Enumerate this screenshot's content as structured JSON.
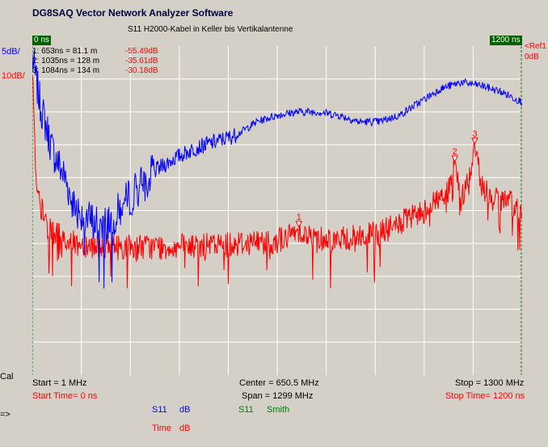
{
  "app_title": "DG8SAQ Vector Network Analyzer Software",
  "chart_title": "S11 H2000-Kabel in Keller bis Vertikalantenne",
  "left_scale": {
    "top": "5dB/",
    "bottom": "10dB/"
  },
  "right_ref": {
    "top": "<Ref1",
    "bottom": "0dB"
  },
  "corner_left": "0 ns",
  "corner_right": "1200 ns",
  "markers": [
    {
      "label": "1:   653ns = 81.1 m",
      "value": "-55.49dB"
    },
    {
      "label": "2:  1035ns = 128 m",
      "value": "-35.61dB"
    },
    {
      "label": "3:  1084ns = 134 m",
      "value": "-30.18dB"
    }
  ],
  "cal_label": "Cal",
  "arrow_label": "=>",
  "footer": {
    "start": "Start = 1 MHz",
    "center": "Center = 650.5 MHz",
    "stop": "Stop = 1300 MHz",
    "start_time": "Start Time= 0 ns",
    "span": "Span = 1299 MHz",
    "stop_time": "Stop Time= 1200 ns",
    "traces": [
      {
        "name": "S11",
        "format": "dB"
      },
      {
        "name": "S11",
        "format": "Smith"
      },
      {
        "name": "Time",
        "format": "dB"
      }
    ]
  },
  "colors": {
    "blue_trace": "#0000ff",
    "red_trace": "#ff0000",
    "grid": "#ffffff",
    "plot_bg": "#d4d0c8",
    "cursor": "#008000"
  },
  "chart_data": {
    "type": "line",
    "title": "S11 H2000-Kabel in Keller bis Vertikalantenne",
    "x_unit": "ns",
    "xlim": [
      0,
      1200
    ],
    "grid": true,
    "series": [
      {
        "name": "S11 dB",
        "color": "#0000ff",
        "scale": "5dB/div",
        "x": [
          0,
          20,
          50,
          80,
          100,
          130,
          160,
          200,
          250,
          300,
          350,
          400,
          450,
          500,
          550,
          600,
          650,
          700,
          750,
          800,
          850,
          900,
          950,
          1000,
          1050,
          1100,
          1150,
          1200
        ],
        "y": [
          -2,
          -9,
          -16,
          -20,
          -24,
          -26,
          -27,
          -26,
          -22,
          -19,
          -17,
          -15.5,
          -14.5,
          -13.5,
          -11.5,
          -10.5,
          -10,
          -10,
          -10.5,
          -11.5,
          -11.5,
          -10.5,
          -8.5,
          -6.5,
          -5.5,
          -6,
          -7,
          -8.5
        ]
      },
      {
        "name": "Time dB",
        "color": "#ff0000",
        "scale": "10dB/div",
        "x": [
          0,
          10,
          40,
          100,
          200,
          300,
          400,
          500,
          600,
          630,
          653,
          680,
          750,
          850,
          950,
          1000,
          1020,
          1035,
          1050,
          1070,
          1084,
          1100,
          1130,
          1160,
          1200
        ],
        "y": [
          -6,
          -45,
          -56,
          -60,
          -61,
          -61,
          -61,
          -60,
          -59,
          -58,
          -55.49,
          -58,
          -59,
          -57,
          -51,
          -46,
          -44,
          -35.61,
          -47,
          -40,
          -30.18,
          -42,
          -47,
          -47,
          -50
        ]
      }
    ],
    "markers": [
      {
        "n": 1,
        "x": 653,
        "y": -55.49
      },
      {
        "n": 2,
        "x": 1035,
        "y": -35.61
      },
      {
        "n": 3,
        "x": 1084,
        "y": -30.18
      }
    ]
  }
}
